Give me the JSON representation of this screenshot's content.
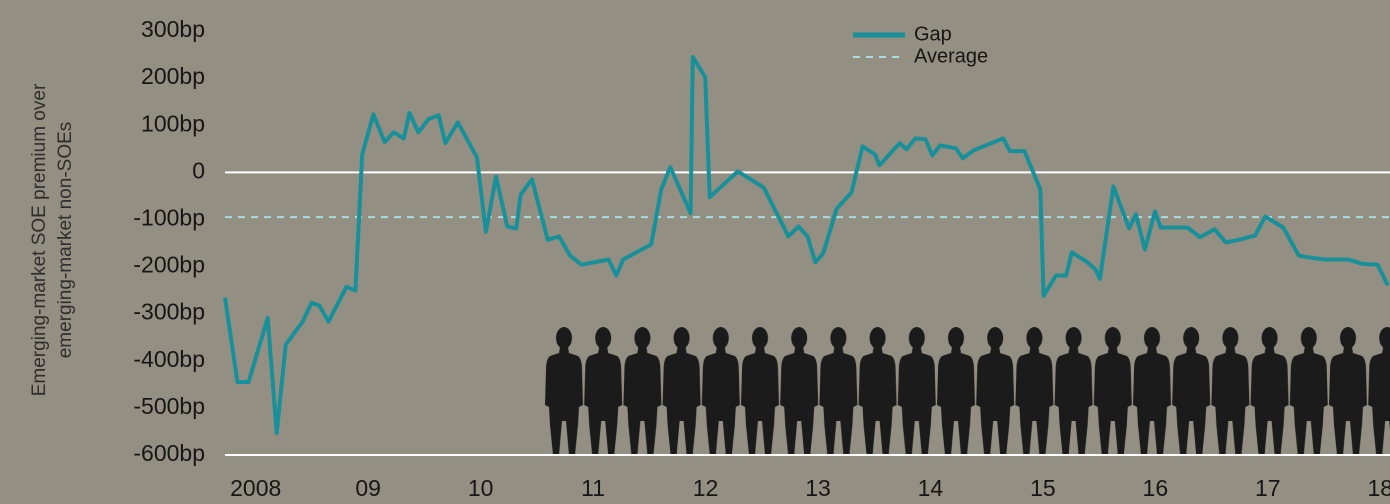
{
  "chart_data": {
    "type": "line",
    "y_label": [
      "Emerging-market SOE premium over",
      "emerging-market non-SOEs"
    ],
    "x": [
      2007.78,
      2007.89,
      2007.99,
      2008.16,
      2008.24,
      2008.32,
      2008.47,
      2008.55,
      2008.62,
      2008.7,
      2008.86,
      2008.94,
      2009.0,
      2009.1,
      2009.2,
      2009.28,
      2009.37,
      2009.42,
      2009.5,
      2009.59,
      2009.68,
      2009.74,
      2009.85,
      2010.02,
      2010.1,
      2010.19,
      2010.29,
      2010.37,
      2010.41,
      2010.51,
      2010.65,
      2010.75,
      2010.85,
      2010.95,
      2011.19,
      2011.26,
      2011.32,
      2011.57,
      2011.66,
      2011.74,
      2011.82,
      2011.92,
      2011.94,
      2012.05,
      2012.09,
      2012.34,
      2012.57,
      2012.79,
      2012.88,
      2012.96,
      2013.03,
      2013.1,
      2013.22,
      2013.35,
      2013.45,
      2013.56,
      2013.6,
      2013.78,
      2013.84,
      2013.92,
      2014.01,
      2014.07,
      2014.14,
      2014.28,
      2014.34,
      2014.44,
      2014.7,
      2014.76,
      2014.89,
      2015.03,
      2015.06,
      2015.17,
      2015.26,
      2015.31,
      2015.44,
      2015.52,
      2015.56,
      2015.68,
      2015.82,
      2015.88,
      2015.96,
      2016.05,
      2016.1,
      2016.34,
      2016.45,
      2016.58,
      2016.68,
      2016.8,
      2016.94,
      2017.03,
      2017.19,
      2017.33,
      2017.43,
      2017.56,
      2017.77,
      2017.89,
      2018.03,
      2018.12
    ],
    "series": [
      {
        "name": "Gap",
        "color": "#17909a",
        "values": [
          -266,
          -445,
          -445,
          -309,
          -553,
          -366,
          -317,
          -277,
          -283,
          -317,
          -243,
          -251,
          38,
          123,
          64,
          85,
          72,
          126,
          85,
          113,
          121,
          62,
          106,
          32,
          -126,
          -9,
          -115,
          -119,
          -47,
          -15,
          -143,
          -136,
          -177,
          -196,
          -185,
          -219,
          -185,
          -153,
          -36,
          11,
          -32,
          -87,
          245,
          202,
          -53,
          2,
          -32,
          -136,
          -115,
          -136,
          -191,
          -172,
          -77,
          -43,
          55,
          38,
          15,
          62,
          49,
          72,
          70,
          36,
          57,
          51,
          30,
          47,
          72,
          45,
          45,
          -36,
          -262,
          -219,
          -219,
          -170,
          -189,
          -206,
          -226,
          -30,
          -119,
          -89,
          -164,
          -83,
          -117,
          -117,
          -138,
          -121,
          -149,
          -143,
          -134,
          -94,
          -117,
          -177,
          -181,
          -185,
          -185,
          -194,
          -196,
          -240
        ]
      }
    ],
    "average": {
      "name": "Average",
      "value": -95,
      "color": "#a9dde0"
    },
    "xlim": [
      2007.78,
      2018.14
    ],
    "xticks": [
      {
        "value": 2008,
        "label": "2008"
      },
      {
        "value": 2009,
        "label": "09"
      },
      {
        "value": 2010,
        "label": "10"
      },
      {
        "value": 2011,
        "label": "11"
      },
      {
        "value": 2012,
        "label": "12"
      },
      {
        "value": 2013,
        "label": "13"
      },
      {
        "value": 2014,
        "label": "14"
      },
      {
        "value": 2015,
        "label": "15"
      },
      {
        "value": 2016,
        "label": "16"
      },
      {
        "value": 2017,
        "label": "17"
      },
      {
        "value": 2018,
        "label": "18"
      }
    ],
    "ylim": [
      -600,
      300
    ],
    "yticks": [
      {
        "value": 300,
        "label": "300bp"
      },
      {
        "value": 200,
        "label": "200bp"
      },
      {
        "value": 100,
        "label": "100bp"
      },
      0,
      {
        "value": -100,
        "label": "-100bp"
      },
      {
        "value": -200,
        "label": "-200bp"
      },
      {
        "value": -300,
        "label": "-300bp"
      },
      {
        "value": -400,
        "label": "-400bp"
      },
      {
        "value": -500,
        "label": "-500bp"
      },
      {
        "value": -600,
        "label": "-600bp"
      }
    ]
  }
}
